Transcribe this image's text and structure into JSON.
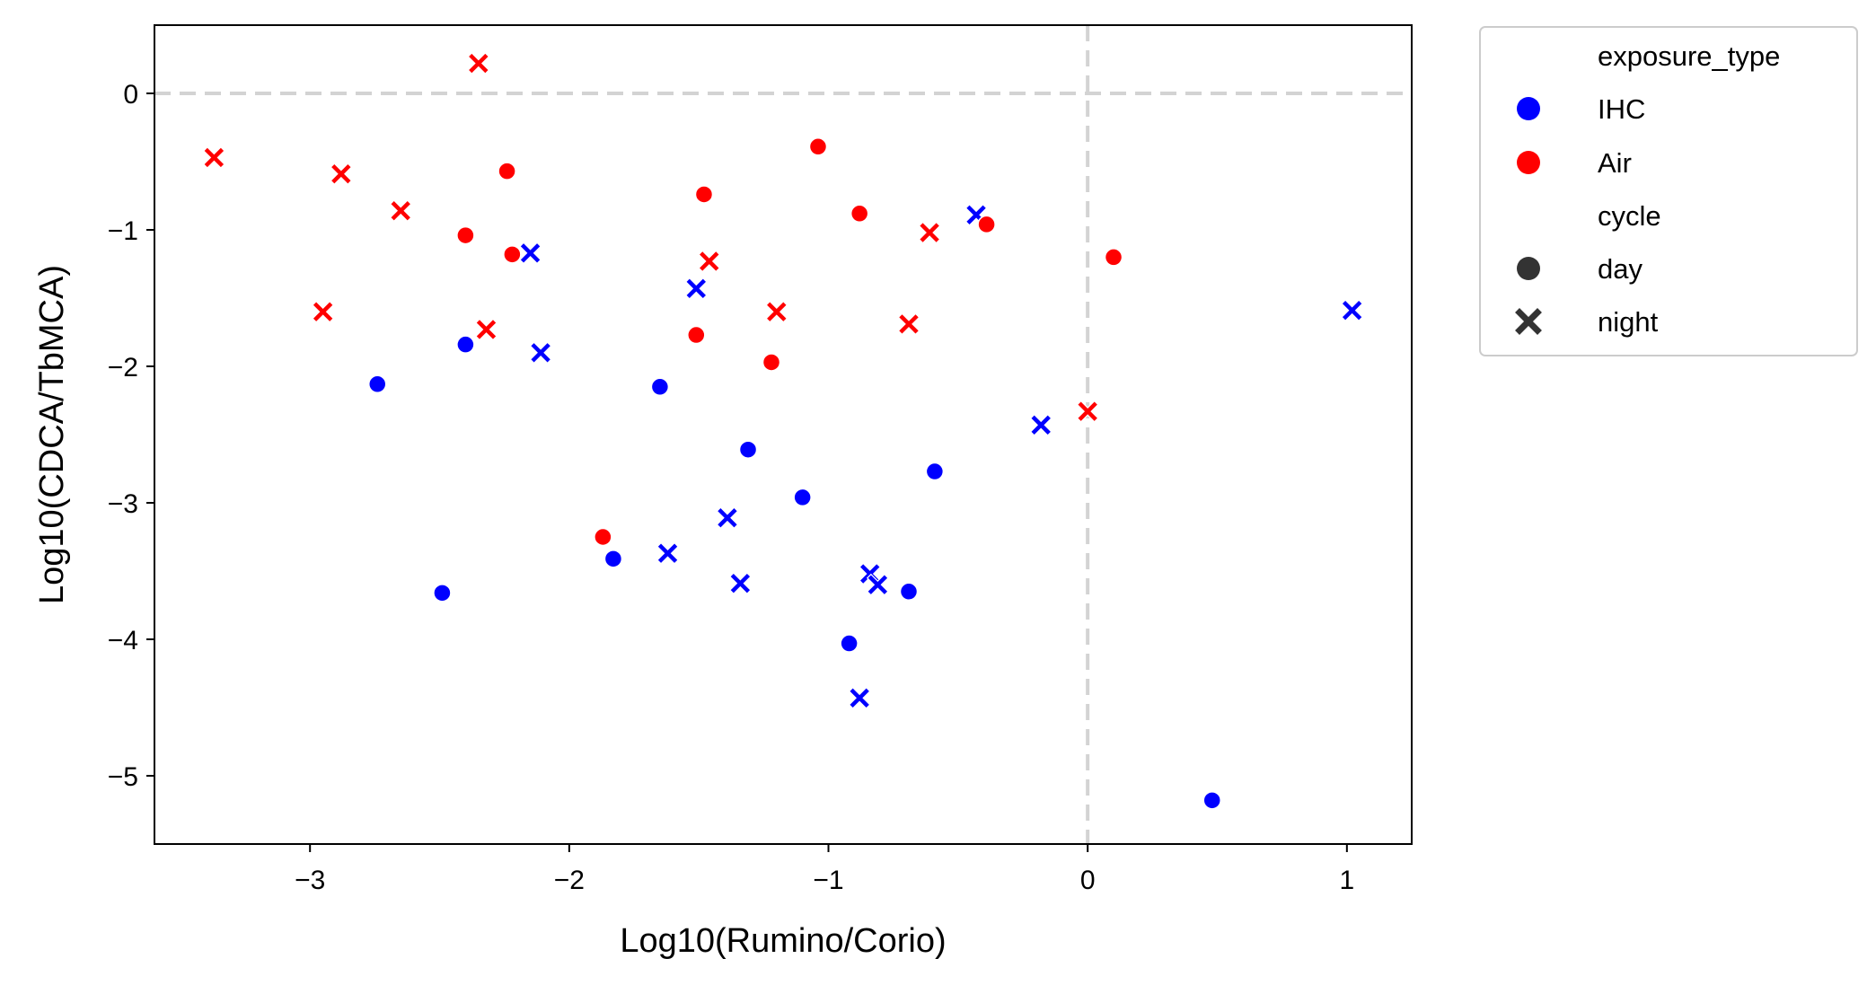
{
  "chart_data": {
    "type": "scatter",
    "xlabel": "Log10(Rumino/Corio)",
    "ylabel": "Log10(CDCA/TbMCA)",
    "xlim": [
      -3.6,
      1.25
    ],
    "ylim": [
      -5.5,
      0.5
    ],
    "xticks": [
      -3,
      -2,
      -1,
      0,
      1
    ],
    "yticks": [
      0,
      -1,
      -2,
      -3,
      -4,
      -5
    ],
    "xtick_labels": [
      "−3",
      "−2",
      "−1",
      "0",
      "1"
    ],
    "ytick_labels": [
      "0",
      "−1",
      "−2",
      "−3",
      "−4",
      "−5"
    ],
    "reference_lines": {
      "x": 0,
      "y": 0,
      "style": "dashed",
      "color": "#d3d3d3"
    },
    "grid": false,
    "legend": {
      "placement": "outside-right-top",
      "hue_title": "exposure_type",
      "hue_entries": [
        {
          "label": "IHC",
          "color": "#0000ff"
        },
        {
          "label": "Air",
          "color": "#ff0000"
        }
      ],
      "style_title": "cycle",
      "style_entries": [
        {
          "label": "day",
          "marker": "circle"
        },
        {
          "label": "night",
          "marker": "x"
        }
      ]
    },
    "series": [
      {
        "exposure_type": "IHC",
        "cycle": "day",
        "color": "#0000ff",
        "marker": "circle",
        "points": [
          [
            -2.74,
            -2.13
          ],
          [
            -2.4,
            -1.84
          ],
          [
            -2.49,
            -3.66
          ],
          [
            -1.83,
            -3.41
          ],
          [
            -1.65,
            -2.15
          ],
          [
            -1.31,
            -2.61
          ],
          [
            -1.1,
            -2.96
          ],
          [
            -0.92,
            -4.03
          ],
          [
            -0.69,
            -3.65
          ],
          [
            -0.59,
            -2.77
          ],
          [
            0.48,
            -5.18
          ]
        ]
      },
      {
        "exposure_type": "IHC",
        "cycle": "night",
        "color": "#0000ff",
        "marker": "x",
        "points": [
          [
            -2.15,
            -1.17
          ],
          [
            -2.11,
            -1.9
          ],
          [
            -1.51,
            -1.43
          ],
          [
            -1.62,
            -3.37
          ],
          [
            -1.39,
            -3.11
          ],
          [
            -1.34,
            -3.59
          ],
          [
            -0.84,
            -3.52
          ],
          [
            -0.81,
            -3.6
          ],
          [
            -0.88,
            -4.43
          ],
          [
            -0.43,
            -0.89
          ],
          [
            -0.18,
            -2.43
          ],
          [
            1.02,
            -1.59
          ]
        ]
      },
      {
        "exposure_type": "Air",
        "cycle": "day",
        "color": "#ff0000",
        "marker": "circle",
        "points": [
          [
            -2.4,
            -1.04
          ],
          [
            -2.24,
            -0.57
          ],
          [
            -2.22,
            -1.18
          ],
          [
            -1.87,
            -3.25
          ],
          [
            -1.48,
            -0.74
          ],
          [
            -1.51,
            -1.77
          ],
          [
            -1.22,
            -1.97
          ],
          [
            -1.04,
            -0.39
          ],
          [
            -0.88,
            -0.88
          ],
          [
            -0.39,
            -0.96
          ],
          [
            0.1,
            -1.2
          ]
        ]
      },
      {
        "exposure_type": "Air",
        "cycle": "night",
        "color": "#ff0000",
        "marker": "x",
        "points": [
          [
            -3.37,
            -0.47
          ],
          [
            -2.95,
            -1.6
          ],
          [
            -2.88,
            -0.59
          ],
          [
            -2.65,
            -0.86
          ],
          [
            -2.35,
            0.22
          ],
          [
            -2.32,
            -1.73
          ],
          [
            -1.46,
            -1.23
          ],
          [
            -1.2,
            -1.6
          ],
          [
            -0.69,
            -1.69
          ],
          [
            -0.61,
            -1.02
          ],
          [
            0.0,
            -2.33
          ]
        ]
      }
    ]
  }
}
